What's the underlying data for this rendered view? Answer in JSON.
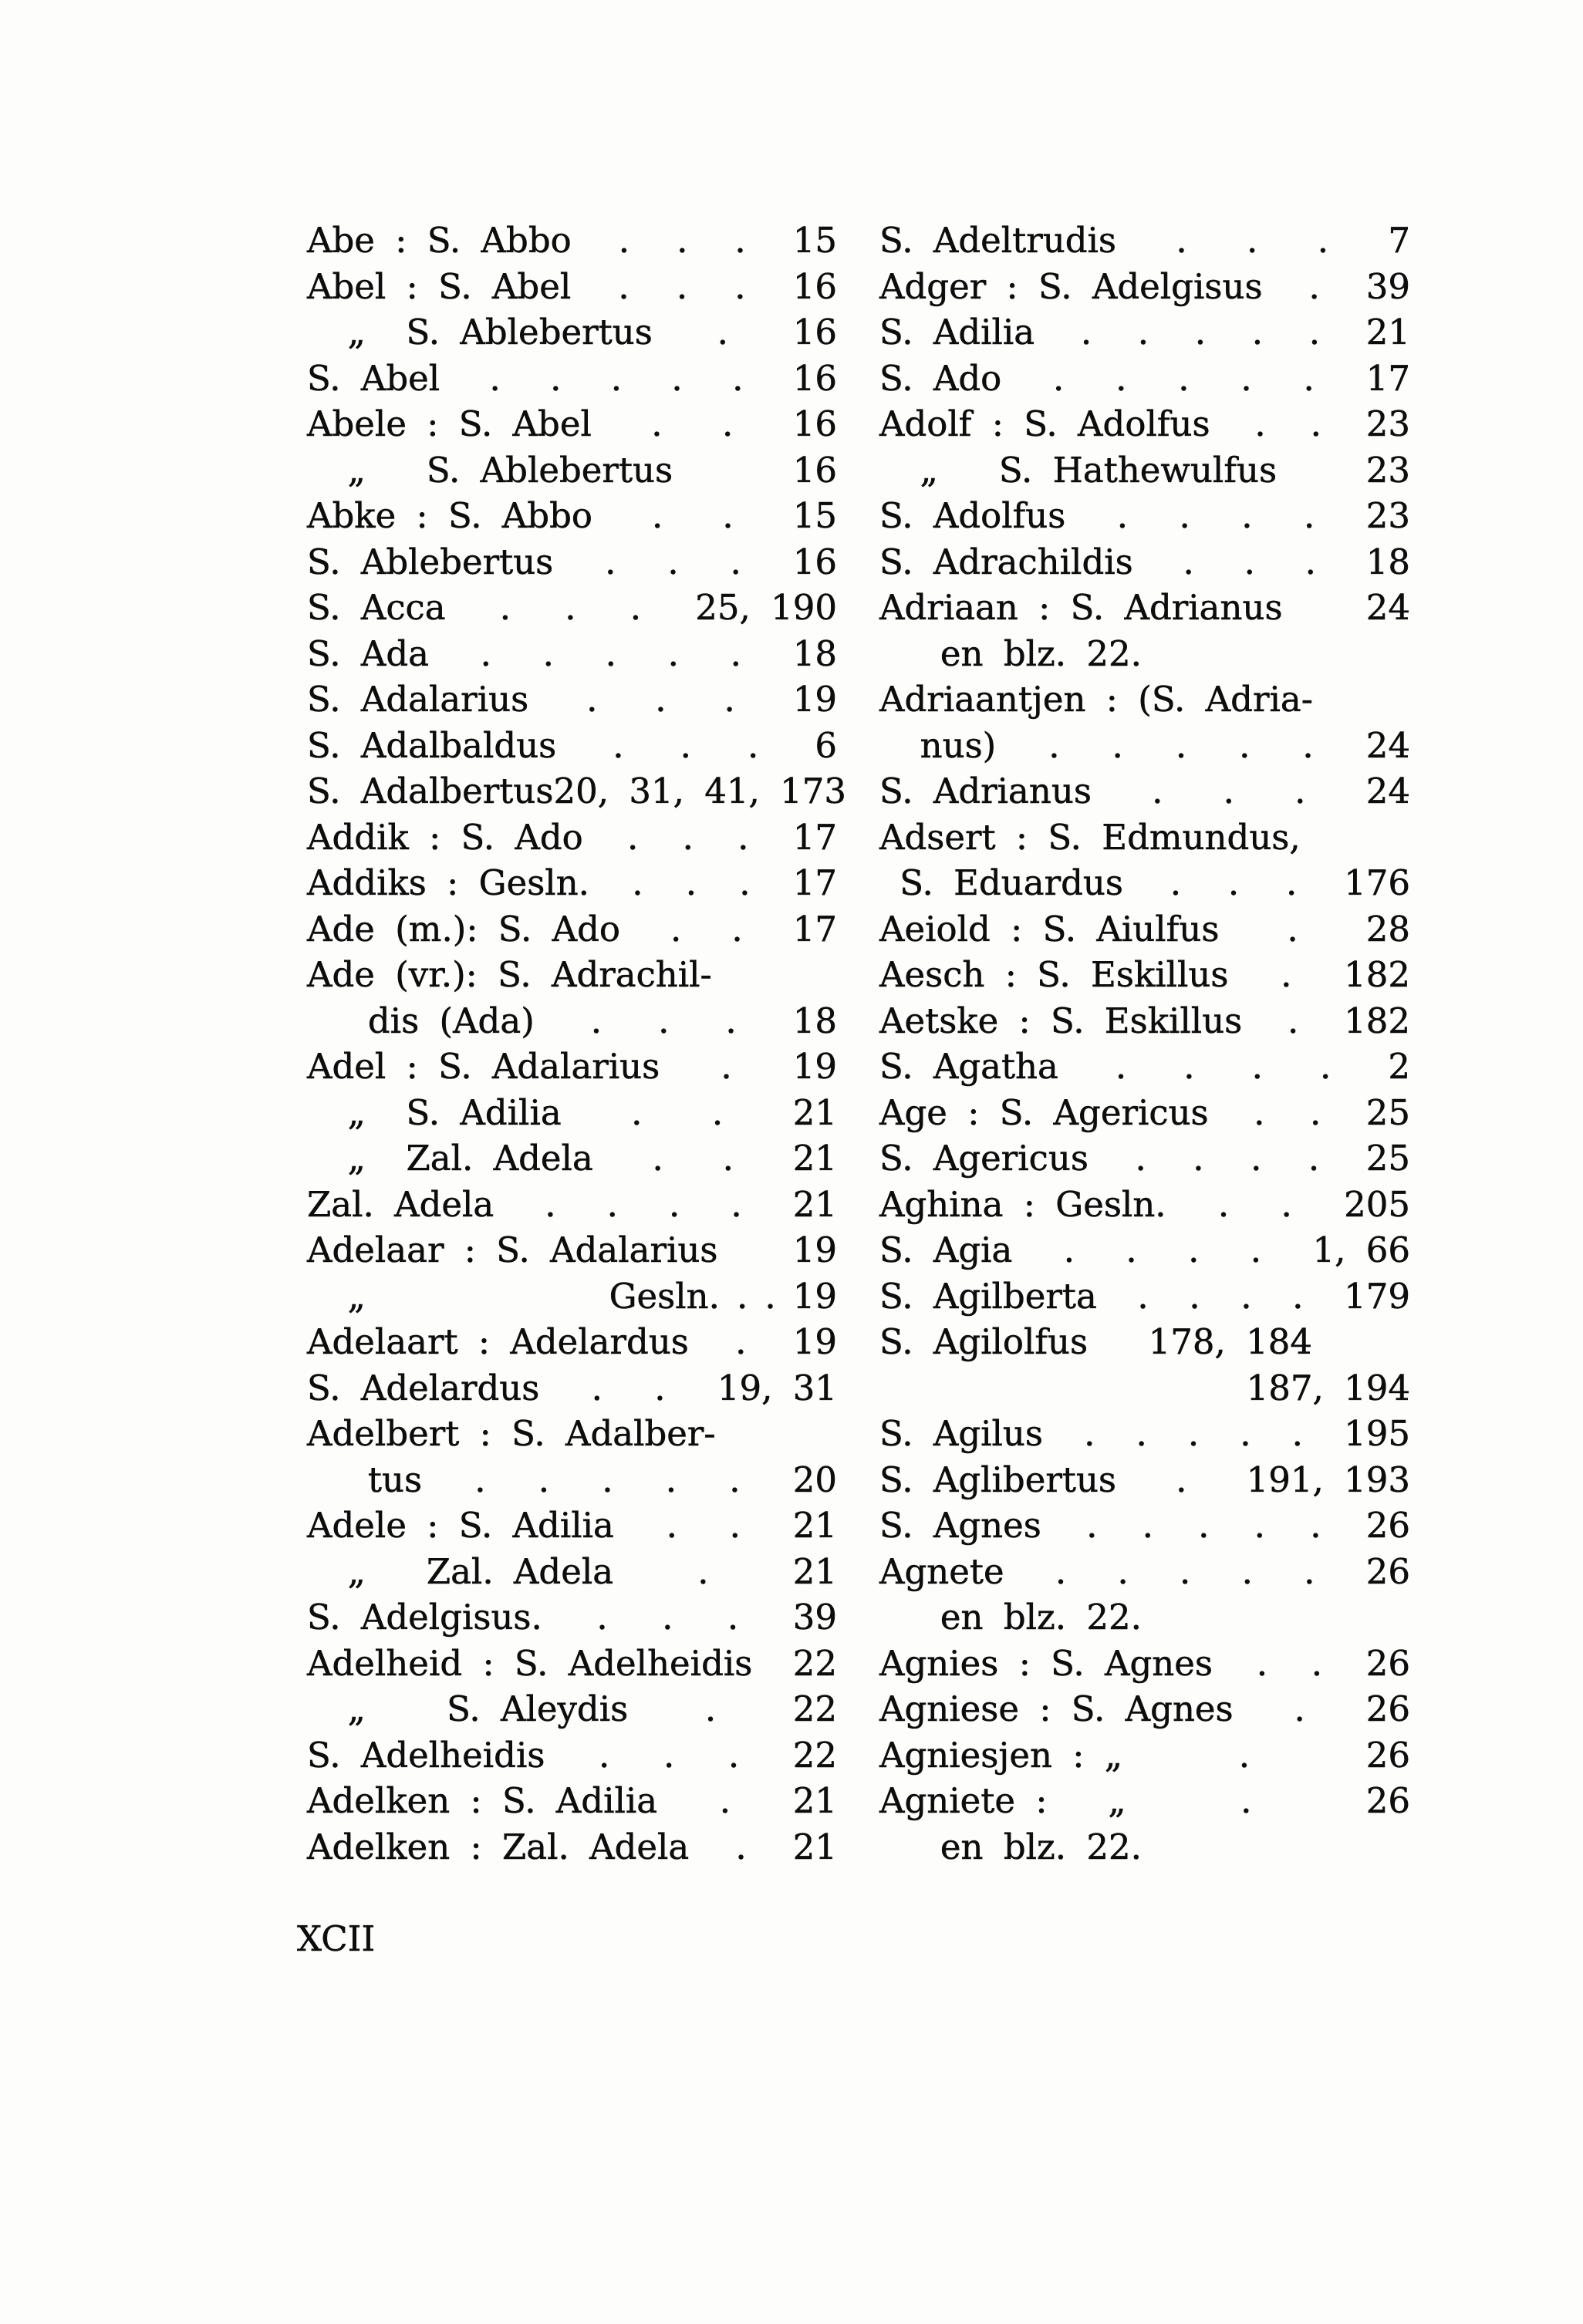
{
  "page": {
    "footer": "XCII",
    "columns": [
      {
        "side": "left",
        "entries": [
          {
            "t": "Abe : S. Abbo",
            "d": 3,
            "p": "15"
          },
          {
            "t": "Abel : S. Abel",
            "d": 3,
            "p": "16"
          },
          {
            "t": "  „  S. Ablebertus",
            "d": 1,
            "p": "16"
          },
          {
            "t": "S. Abel",
            "d": 5,
            "p": "16"
          },
          {
            "t": "Abele : S. Abel",
            "d": 2,
            "p": "16"
          },
          {
            "t": "  „   S. Ablebertus",
            "d": 0,
            "p": "16"
          },
          {
            "t": "Abke : S. Abbo",
            "d": 2,
            "p": "15"
          },
          {
            "t": "S. Ablebertus",
            "d": 3,
            "p": "16"
          },
          {
            "t": "S. Acca",
            "d": 3,
            "p": "25, 190"
          },
          {
            "t": "S. Ada",
            "d": 5,
            "p": "18"
          },
          {
            "t": "S. Adalarius",
            "d": 3,
            "p": "19"
          },
          {
            "t": "S. Adalbaldus",
            "d": 3,
            "p": "6"
          },
          {
            "t": "S. Adalbertus",
            "d": 0,
            "p": "20, 31, 41, 173"
          },
          {
            "t": "Addik : S. Ado",
            "d": 3,
            "p": "17"
          },
          {
            "t": "Addiks : Gesln.",
            "d": 3,
            "p": "17"
          },
          {
            "t": "Ade (m.): S. Ado",
            "d": 2,
            "p": "17"
          },
          {
            "t": "Ade (vr.): S. Adrachil-",
            "d": 0,
            "p": ""
          },
          {
            "t": "   dis (Ada)",
            "d": 3,
            "p": "18"
          },
          {
            "t": "Adel : S. Adalarius",
            "d": 1,
            "p": "19"
          },
          {
            "t": "  „  S. Adilia",
            "d": 2,
            "p": "21"
          },
          {
            "t": "  „  Zal. Adela",
            "d": 2,
            "p": "21"
          },
          {
            "t": "Zal. Adela",
            "d": 4,
            "p": "21"
          },
          {
            "t": "Adelaar : S. Adalarius",
            "d": 0,
            "p": "19"
          },
          {
            "t": "  „            Gesln.",
            "d": 2,
            "p": "19"
          },
          {
            "t": "Adelaart : Adelardus",
            "d": 1,
            "p": "19"
          },
          {
            "t": "S. Adelardus",
            "d": 2,
            "p": "19, 31"
          },
          {
            "t": "Adelbert : S. Adalber-",
            "d": 0,
            "p": ""
          },
          {
            "t": "   tus",
            "d": 5,
            "p": "20"
          },
          {
            "t": "Adele : S. Adilia",
            "d": 2,
            "p": "21"
          },
          {
            "t": "  „   Zal. Adela",
            "d": 1,
            "p": "21"
          },
          {
            "t": "S. Adelgisus.",
            "d": 3,
            "p": "39"
          },
          {
            "t": "Adelheid : S. Adelheidis",
            "d": 0,
            "p": "22"
          },
          {
            "t": "  „    S. Aleydis",
            "d": 1,
            "p": "22"
          },
          {
            "t": "S. Adelheidis",
            "d": 3,
            "p": "22"
          },
          {
            "t": "Adelken : S. Adilia",
            "d": 1,
            "p": "21"
          },
          {
            "t": "Adelken : Zal. Adela",
            "d": 1,
            "p": "21"
          }
        ]
      },
      {
        "side": "right",
        "entries": [
          {
            "t": "S. Adeltrudis",
            "d": 3,
            "p": "7"
          },
          {
            "t": "Adger : S. Adelgisus",
            "d": 1,
            "p": "39"
          },
          {
            "t": "S. Adilia",
            "d": 5,
            "p": "21"
          },
          {
            "t": "S. Ado",
            "d": 5,
            "p": "17"
          },
          {
            "t": "Adolf : S. Adolfus",
            "d": 2,
            "p": "23"
          },
          {
            "t": "  „   S. Hathewulfus",
            "d": 0,
            "p": "23"
          },
          {
            "t": "S. Adolfus",
            "d": 4,
            "p": "23"
          },
          {
            "t": "S. Adrachildis",
            "d": 3,
            "p": "18"
          },
          {
            "t": "Adriaan : S. Adrianus",
            "d": 0,
            "p": "24"
          },
          {
            "t": "   en blz. 22.",
            "d": 0,
            "p": ""
          },
          {
            "t": "Adriaantjen : (S. Adria-",
            "d": 0,
            "p": ""
          },
          {
            "t": "  nus)",
            "d": 5,
            "p": "24"
          },
          {
            "t": "S. Adrianus",
            "d": 3,
            "p": "24"
          },
          {
            "t": "Adsert : S. Edmundus,",
            "d": 0,
            "p": ""
          },
          {
            "t": " S. Eduardus",
            "d": 3,
            "p": "176"
          },
          {
            "t": "Aeiold : S. Aiulfus",
            "d": 1,
            "p": "28"
          },
          {
            "t": "Aesch : S. Eskillus",
            "d": 1,
            "p": "182"
          },
          {
            "t": "Aetske : S. Eskillus",
            "d": 1,
            "p": "182"
          },
          {
            "t": "S. Agatha",
            "d": 4,
            "p": "2"
          },
          {
            "t": "Age : S. Agericus",
            "d": 2,
            "p": "25"
          },
          {
            "t": "S. Agericus",
            "d": 4,
            "p": "25"
          },
          {
            "t": "Aghina : Gesln.",
            "d": 2,
            "p": "205"
          },
          {
            "t": "S. Agia",
            "d": 4,
            "p": "1, 66"
          },
          {
            "t": "S. Agilberta",
            "d": 4,
            "p": "179"
          },
          {
            "t": "S. Agilolfus",
            "d": 0,
            "p": "178, 184",
            "cls": "inset"
          },
          {
            "t": "",
            "d": 0,
            "p": "187, 194"
          },
          {
            "t": "S. Agilus",
            "d": 5,
            "p": "195"
          },
          {
            "t": "S. Aglibertus",
            "d": 1,
            "p": "191, 193"
          },
          {
            "t": "S. Agnes",
            "d": 5,
            "p": "26"
          },
          {
            "t": "Agnete",
            "d": 5,
            "p": "26"
          },
          {
            "t": "   en blz. 22.",
            "d": 0,
            "p": ""
          },
          {
            "t": "Agnies : S. Agnes",
            "d": 2,
            "p": "26"
          },
          {
            "t": "Agniese : S. Agnes",
            "d": 1,
            "p": "26"
          },
          {
            "t": "Agniesjen : „",
            "d": 1,
            "p": "26"
          },
          {
            "t": "Agniete :   „",
            "d": 1,
            "p": "26"
          },
          {
            "t": "   en blz. 22.",
            "d": 0,
            "p": ""
          }
        ]
      }
    ]
  }
}
